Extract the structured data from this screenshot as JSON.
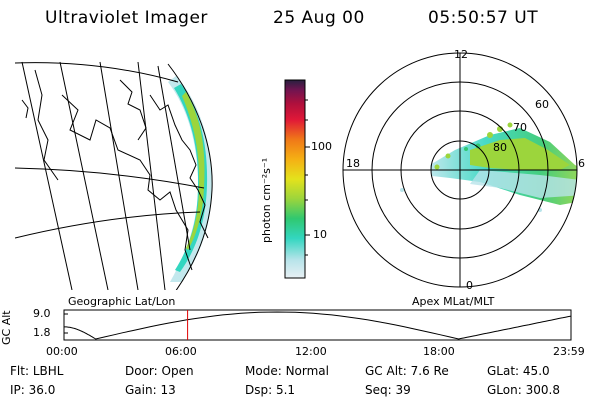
{
  "header": {
    "title": "Ultraviolet Imager",
    "date": "25 Aug 00",
    "time": "05:50:57 UT"
  },
  "colorbar": {
    "label": "photon cm⁻²s⁻¹",
    "ticks": [
      {
        "label": "100",
        "value": 100
      },
      {
        "label": "10",
        "value": 10
      }
    ],
    "colors": [
      "#e8f0f4",
      "#b8e4ea",
      "#33d6c0",
      "#30c870",
      "#9cd53c",
      "#e4e21c",
      "#f5b014",
      "#f07818",
      "#e01838",
      "#b0103c",
      "#701450",
      "#282040"
    ]
  },
  "map_panel": {
    "label": "Geographic Lat/Lon"
  },
  "polar_panel": {
    "label": "Apex MLat/MLT",
    "mlt_labels": {
      "top": "12",
      "bottom": "0",
      "left": "18",
      "right": "6"
    },
    "lat_labels": [
      "60",
      "70",
      "80"
    ]
  },
  "altitude_plot": {
    "ylabel": "GC Alt",
    "yticks": [
      "9.0",
      "1.8"
    ],
    "xticks": [
      "00:00",
      "06:00",
      "12:00",
      "18:00",
      "23:59"
    ],
    "marker_time": "05:50:57",
    "marker_color": "#e00000"
  },
  "info": {
    "row1": [
      {
        "key": "Flt:",
        "value": "LBHL"
      },
      {
        "key": "Door:",
        "value": "Open"
      },
      {
        "key": "Mode:",
        "value": "Normal"
      },
      {
        "key": "GC Alt:",
        "value": "7.6 Re"
      },
      {
        "key": "GLat:",
        "value": "45.0"
      }
    ],
    "row2": [
      {
        "key": "IP:",
        "value": "36.0"
      },
      {
        "key": "Gain:",
        "value": "13"
      },
      {
        "key": "Dsp:",
        "value": "5.1"
      },
      {
        "key": "Seq:",
        "value": "39"
      },
      {
        "key": "GLon:",
        "value": "300.8"
      }
    ]
  }
}
